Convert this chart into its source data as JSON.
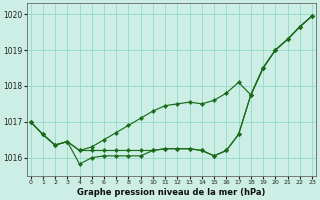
{
  "title": "Graphe pression niveau de la mer (hPa)",
  "bg_color": "#cceee4",
  "line_color": "#1a6b1a",
  "grid_color": "#99ddcc",
  "ylim": [
    1015.5,
    1020.3
  ],
  "xlim": [
    -0.3,
    23.3
  ],
  "yticks": [
    1016,
    1017,
    1018,
    1019,
    1020
  ],
  "xticks": [
    0,
    1,
    2,
    3,
    4,
    5,
    6,
    7,
    8,
    9,
    10,
    11,
    12,
    13,
    14,
    15,
    16,
    17,
    18,
    19,
    20,
    21,
    22,
    23
  ],
  "series1": [
    1017.0,
    1016.65,
    1016.35,
    1016.45,
    1016.2,
    1016.3,
    1016.5,
    1016.7,
    1016.9,
    1017.1,
    1017.3,
    1017.45,
    1017.5,
    1017.55,
    1017.5,
    1017.6,
    1017.8,
    1018.1,
    1017.75,
    1018.5,
    1019.0,
    1019.3,
    1019.65,
    1019.95
  ],
  "series2": [
    1017.0,
    1016.65,
    1016.35,
    1016.45,
    1016.2,
    1016.2,
    1016.2,
    1016.2,
    1016.2,
    1016.2,
    1016.2,
    1016.25,
    1016.25,
    1016.25,
    1016.2,
    1016.05,
    1016.2,
    1016.65,
    1017.75,
    1018.5,
    1019.0,
    1019.3,
    1019.65,
    1019.95
  ],
  "series3": [
    1017.0,
    1016.65,
    1016.35,
    1016.45,
    1015.82,
    1016.0,
    1016.05,
    1016.05,
    1016.05,
    1016.05,
    1016.2,
    1016.25,
    1016.25,
    1016.25,
    1016.2,
    1016.05,
    1016.2,
    1016.65,
    1017.75,
    1018.5,
    1019.0,
    1019.3,
    1019.65,
    1019.95
  ]
}
